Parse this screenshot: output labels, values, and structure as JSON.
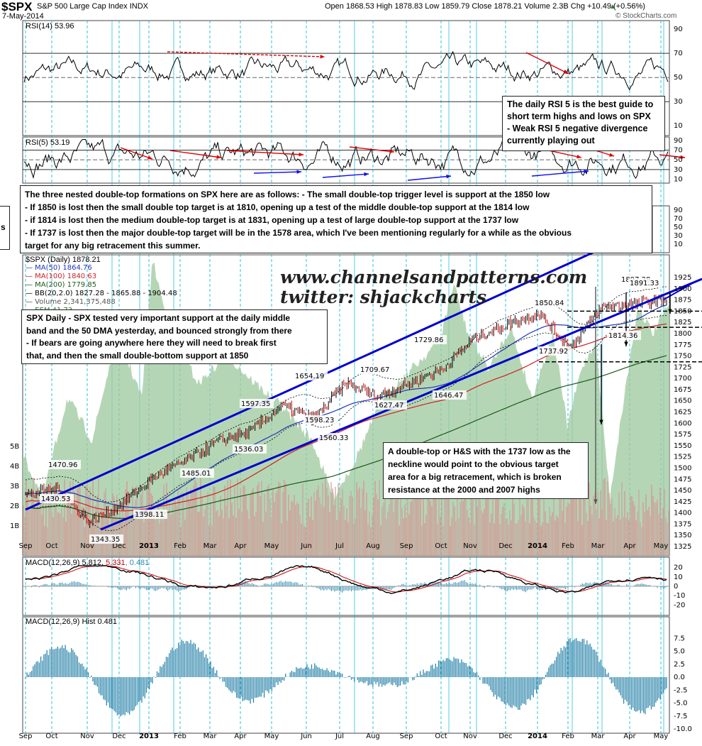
{
  "header": {
    "symbol": "$SPX",
    "name": "S&P 500 Large Cap Index",
    "exchange": "INDX",
    "date": "7-May-2014",
    "ohlc": "Open 1868.53  High 1878.83  Low 1859.79  Close 1878.21  Volume 2.3B  Chg +10.49 (+0.56%)",
    "chg_arrow": "▲",
    "brand": "© StockCharts.com"
  },
  "colors": {
    "price_up": "#000000",
    "price_down": "#cc0000",
    "ma50": "#1f35b8",
    "ma100": "#cc2222",
    "ma200": "#1a5a1a",
    "channel": "#0000cc",
    "eem_fill": "#9cc89c",
    "macd_hist": "#2e86ab",
    "vgrid": "#00b4d8",
    "note_arrow_red": "#e00000",
    "note_arrow_blue": "#1010ee"
  },
  "panels": {
    "rsi14_label": "RSI(14) 53.96",
    "rsi5_label": "RSI(5) 53.19",
    "spx_label": "$SPX (Daily) 1878.21",
    "macd_label": "MACD(12,26,9) 5.812,",
    "macd_signal_value": "5.331",
    "macd_hist_value": ", 0.481",
    "hist_label": "MACD(12,26,9) Hist 0.481",
    "legend": [
      {
        "text": "MA(50) 1864.76",
        "color": "#1f35b8"
      },
      {
        "text": "MA(100) 1840.63",
        "color": "#cc2222"
      },
      {
        "text": "MA(200) 1779.85",
        "color": "#1a5a1a"
      },
      {
        "text": "BB(20,2.0) 1827.28 - 1865.88 - 1904.48",
        "color": "#000000"
      },
      {
        "text": "Volume 2,341,375,488",
        "color": "#555555"
      },
      {
        "text": "EEM 41.73",
        "color": "#2e7d32"
      }
    ]
  },
  "axes": {
    "rsi14_ticks": [
      "90",
      "70",
      "50",
      "30",
      "10"
    ],
    "rsi5_ticks": [
      "90",
      "70",
      "50",
      "30",
      "10"
    ],
    "mini_ticks": [
      "90",
      "70",
      "50",
      "30",
      "10"
    ],
    "price_ticks": [
      "1925",
      "1900",
      "1875",
      "1850",
      "1825",
      "1800",
      "1775",
      "1750",
      "1725",
      "1700",
      "1675",
      "1650",
      "1625",
      "1600",
      "1575",
      "1550",
      "1525",
      "1500",
      "1475",
      "1450",
      "1425",
      "1400",
      "1375",
      "1350",
      "1325"
    ],
    "volume_ticks": [
      "5B",
      "4B",
      "3B",
      "2B",
      "1B"
    ],
    "macd_ticks": [
      "20",
      "10",
      "0",
      "-10",
      "-20"
    ],
    "hist_ticks": [
      "7.5",
      "5.0",
      "2.5",
      "0.0",
      "-2.5",
      "-5.0",
      "-7.5",
      "-10.0"
    ],
    "months": [
      "Sep",
      "Oct",
      "Nov",
      "Dec",
      "2013",
      "Feb",
      "Mar",
      "Apr",
      "May",
      "Jun",
      "Jul",
      "Aug",
      "Sep",
      "Oct",
      "Nov",
      "Dec",
      "2014",
      "Feb",
      "Mar",
      "Apr",
      "May"
    ]
  },
  "price_labels": [
    "1470.96",
    "1430.53",
    "1343.35",
    "1398.11",
    "1485.01",
    "1536.03",
    "1597.35",
    "1654.19",
    "1598.23",
    "1560.33",
    "1709.67",
    "1627.47",
    "1729.86",
    "1646.47",
    "1850.84",
    "1737.92",
    "1814.36",
    "1897.28",
    "1891.33"
  ],
  "watermark": {
    "site": "www.channelsandpatterns.com",
    "twitter": "twitter: shjackcharts"
  },
  "notes": {
    "rsi_note": [
      "The daily RSI 5 is the best guide to",
      "short term highs and lows on SPX",
      "- Weak RSI 5 negative divergence",
      "currently playing out"
    ],
    "double_top_note": [
      "The three nested double-top formations on SPX here are as follows: - The small double-top trigger level is support at the 1850 low",
      "- If 1850 is lost then the small double top target is at 1810, opening up a test of the middle double-top support at the 1814 low",
      "- if 1814 is lost then the medium double-top target is at 1831, opening up a test of large double-top support at the 1737 low",
      "- If 1737 is lost then the major double-top target will be in the 1578 area, which I've been mentioning regularly for a while as the obvious",
      "target for any big retracement this summer."
    ],
    "spx_note": [
      "SPX Daily - SPX tested very important support at the daily middle",
      "band and the 50 DMA yesterday, and bounced strongly from there",
      "- If bears are going anywhere here they will need to break first",
      "that, and then the small double-bottom support at 1850"
    ],
    "hs_note": [
      "A double-top or H&S with the 1737 low as the",
      "neckline would point to the obvious target",
      "area for a big retracement, which is broken",
      "resistance at the 2000 and 2007 highs"
    ],
    "side_fragment": "s"
  },
  "chart_data": {
    "type": "line",
    "title": "$SPX S&P 500 Large Cap Index INDX",
    "x": [
      "Sep 2012",
      "Oct",
      "Nov",
      "Dec",
      "Jan 2013",
      "Feb",
      "Mar",
      "Apr",
      "May",
      "Jun",
      "Jul",
      "Aug",
      "Sep",
      "Oct",
      "Nov",
      "Dec",
      "Jan 2014",
      "Feb",
      "Mar",
      "Apr",
      "May 2014"
    ],
    "series": [
      {
        "name": "$SPX (Daily)",
        "values": [
          1440,
          1455,
          1380,
          1420,
          1480,
          1515,
          1560,
          1580,
          1640,
          1610,
          1690,
          1660,
          1690,
          1720,
          1790,
          1820,
          1845,
          1770,
          1860,
          1865,
          1878
        ]
      }
    ],
    "ylim": [
      1325,
      1925
    ],
    "annotated_points": [
      {
        "label": "1470.96",
        "x": "Oct 2012",
        "y": 1470.96
      },
      {
        "label": "1430.53",
        "x": "Sep 2012",
        "y": 1430.53
      },
      {
        "label": "1343.35",
        "x": "Nov 2012",
        "y": 1343.35
      },
      {
        "label": "1398.11",
        "x": "Dec 2012",
        "y": 1398.11
      },
      {
        "label": "1485.01",
        "x": "Mar 2013",
        "y": 1485.01
      },
      {
        "label": "1536.03",
        "x": "Apr 2013",
        "y": 1536.03
      },
      {
        "label": "1597.35",
        "x": "Apr 2013",
        "y": 1597.35
      },
      {
        "label": "1654.19",
        "x": "May 2013",
        "y": 1654.19
      },
      {
        "label": "1598.23",
        "x": "Jun 2013",
        "y": 1598.23
      },
      {
        "label": "1560.33",
        "x": "Jun 2013",
        "y": 1560.33
      },
      {
        "label": "1709.67",
        "x": "Aug 2013",
        "y": 1709.67
      },
      {
        "label": "1627.47",
        "x": "Aug 2013",
        "y": 1627.47
      },
      {
        "label": "1729.86",
        "x": "Sep 2013",
        "y": 1729.86
      },
      {
        "label": "1646.47",
        "x": "Oct 2013",
        "y": 1646.47
      },
      {
        "label": "1850.84",
        "x": "Jan 2014",
        "y": 1850.84
      },
      {
        "label": "1737.92",
        "x": "Feb 2014",
        "y": 1737.92
      },
      {
        "label": "1814.36",
        "x": "Apr 2014",
        "y": 1814.36
      },
      {
        "label": "1897.28",
        "x": "Mar 2014",
        "y": 1897.28
      },
      {
        "label": "1891.33",
        "x": "Apr 2014",
        "y": 1891.33
      }
    ],
    "levels": [
      1850,
      1814,
      1737
    ]
  }
}
